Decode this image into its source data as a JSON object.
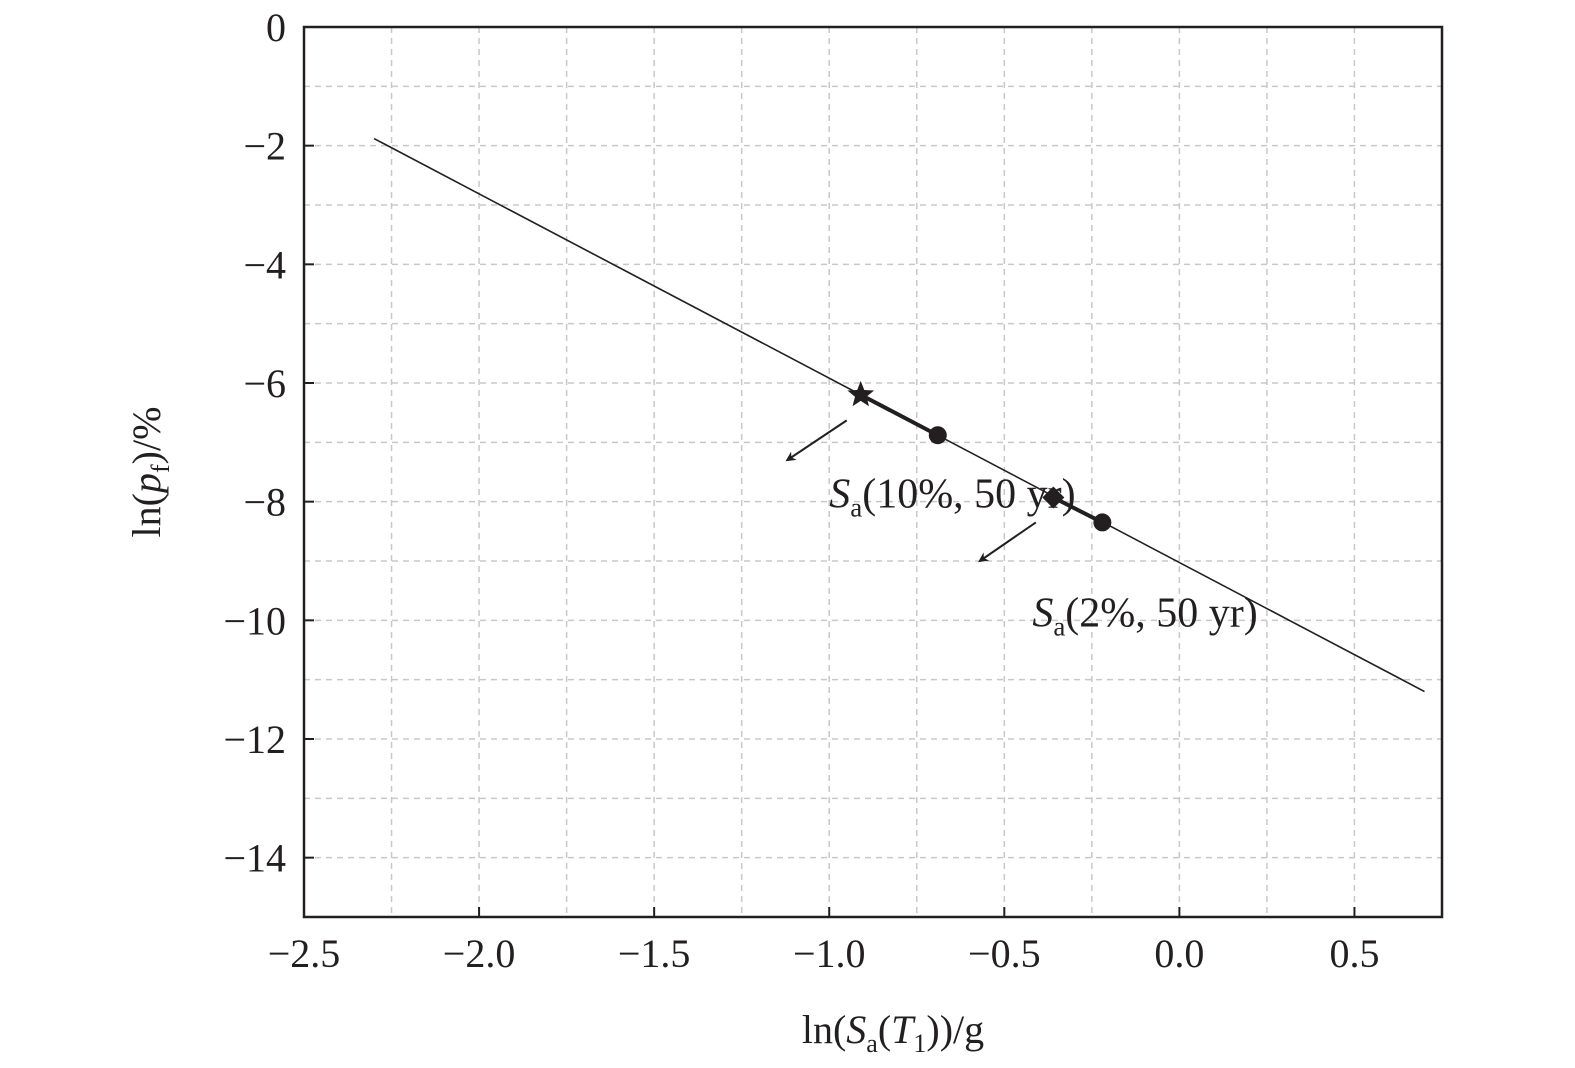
{
  "chart_data": {
    "type": "line",
    "title": "",
    "xlabel": {
      "pre": "ln(",
      "sym": "S",
      "sub": "a",
      "mid": "(",
      "sym2": "T",
      "sub2": "1",
      "post": "))/g"
    },
    "ylabel": {
      "pre": "ln(",
      "sym": "p",
      "sub": "f",
      "post": ")/%"
    },
    "xlim": [
      -2.5,
      0.75
    ],
    "ylim": [
      -15,
      0
    ],
    "x_ticks": [
      -2.5,
      -2.0,
      -1.5,
      -1.0,
      -0.5,
      0.0,
      0.5
    ],
    "x_tick_labels": [
      "−2.5",
      "−2.0",
      "−1.5",
      "−1.0",
      "−0.5",
      "0.0",
      "0.5"
    ],
    "y_ticks": [
      0,
      -2,
      -4,
      -6,
      -8,
      -10,
      -12,
      -14
    ],
    "y_tick_labels": [
      "0",
      "−2",
      "−4",
      "−6",
      "−8",
      "−10",
      "−12",
      "−14"
    ],
    "grid": true,
    "grid_x": [
      -2.25,
      -1.75,
      -1.25,
      -0.75,
      -0.25,
      0.25
    ],
    "grid_y": [
      -1,
      -3,
      -5,
      -7,
      -9,
      -11,
      -13
    ],
    "series": [
      {
        "style": "solid-line",
        "x": [
          -2.3,
          0.7
        ],
        "y": [
          -1.88,
          -11.2
        ]
      }
    ],
    "markers": [
      {
        "shape": "star",
        "x": -0.91,
        "y": -6.2
      },
      {
        "shape": "circle",
        "x": -0.69,
        "y": -6.88
      },
      {
        "shape": "diamond",
        "x": -0.36,
        "y": -7.93
      },
      {
        "shape": "circle",
        "x": -0.22,
        "y": -8.35
      }
    ],
    "bold_segments": [
      {
        "x": [
          -0.91,
          -0.69
        ],
        "y": [
          -6.2,
          -6.88
        ]
      },
      {
        "x": [
          -0.36,
          -0.22
        ],
        "y": [
          -7.93,
          -8.35
        ]
      }
    ],
    "annotations": [
      {
        "sym": "S",
        "sub": "a",
        "text": "(10%, 50 yr)",
        "x": -1.0,
        "y": -8.1,
        "arrow_from": [
          -0.95,
          -6.63
        ],
        "arrow_to": [
          -1.12,
          -7.3
        ]
      },
      {
        "sym": "S",
        "sub": "a",
        "text": "(2%, 50 yr)",
        "x": -0.42,
        "y": -10.1,
        "arrow_from": [
          -0.41,
          -8.35
        ],
        "arrow_to": [
          -0.57,
          -9.0
        ]
      }
    ]
  }
}
